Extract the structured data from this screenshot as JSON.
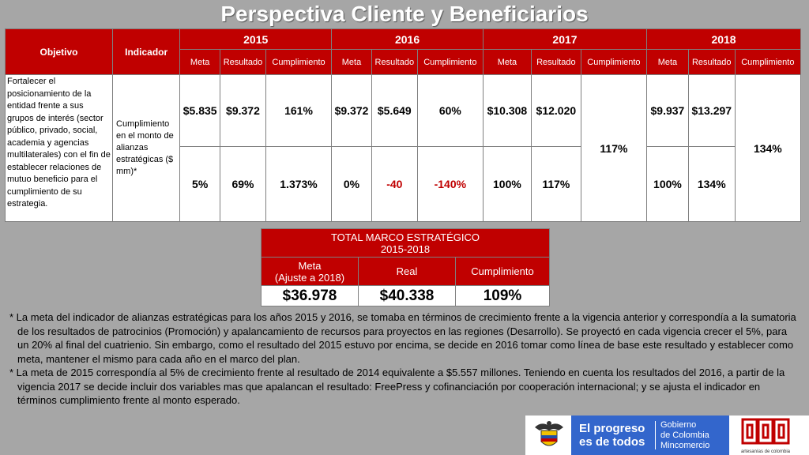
{
  "title": "Perspectiva Cliente y Beneficiarios",
  "table": {
    "col_objetivo": "Objetivo",
    "col_indicador": "Indicador",
    "years": [
      "2015",
      "2016",
      "2017",
      "2018"
    ],
    "sub_meta": "Meta",
    "sub_resultado": "Resultado",
    "sub_cumplimiento": "Cumplimiento",
    "objetivo": "Fortalecer el posicionamiento de la entidad frente a sus grupos de interés (sector público, privado, social, academia y agencias multilaterales) con el fin de establecer relaciones de mutuo beneficio para el cumplimiento de su estrategia.",
    "indicador": "Cumplimiento en el monto de alianzas estratégicas ($ mm)*",
    "row1": {
      "m2015": "$5.835",
      "r2015": "$9.372",
      "c2015": "161%",
      "m2016": "$9.372",
      "r2016": "$5.649",
      "c2016": "60%",
      "m2017": "$10.308",
      "r2017": "$12.020",
      "m2018": "$9.937",
      "r2018": "$13.297"
    },
    "row2": {
      "m2015": "5%",
      "r2015": "69%",
      "c2015": "1.373%",
      "m2016": "0%",
      "r2016": "-40",
      "c2016": "-140%",
      "m2017": "100%",
      "r2017": "117%",
      "m2018": "100%",
      "r2018": "134%"
    },
    "c2017": "117%",
    "c2018": "134%"
  },
  "total": {
    "title_line1": "TOTAL MARCO ESTRATÉGICO",
    "title_line2": "2015-2018",
    "meta_line1": "Meta",
    "meta_line2": "(Ajuste a 2018)",
    "real": "Real",
    "cumplimiento": "Cumplimiento",
    "meta_value": "$36.978",
    "real_value": "$40.338",
    "cumplimiento_value": "109%"
  },
  "notes": [
    "* La meta del indicador de alianzas estratégicas para los años 2015 y 2016, se tomaba en términos de crecimiento frente a la vigencia anterior y correspondía a la sumatoria de los resultados de patrocinios (Promoción) y apalancamiento de recursos para proyectos en las regiones (Desarrollo). Se proyectó en cada vigencia crecer el 5%, para un 20% al final del cuatrienio. Sin embargo, como el resultado del 2015 estuvo por encima, se decide en 2016 tomar como línea de base este resultado y establecer como meta, mantener el mismo para cada año en el marco del plan.",
    "* La meta de 2015 correspondía al 5% de crecimiento frente al resultado de 2014 equivalente a $5.557 millones. Teniendo en cuenta los resultados del 2016, a partir de la vigencia 2017 se decide incluir dos variables mas que apalancan el resultado: FreePress y cofinanciación por cooperación internacional; y se ajusta el indicador en términos cumplimiento frente al monto esperado."
  ],
  "footer": {
    "logo_line1": "El progreso",
    "logo_line2": "es de todos",
    "gov_line1": "Gobierno",
    "gov_line2": "de Colombia",
    "gov_line3": "Mincomercio",
    "artesanias": "artesanías de colombia"
  },
  "colors": {
    "header_red": "#c00000",
    "background": "#a6a6a6",
    "negative": "#c00000",
    "logo_blue": "#3366cc"
  }
}
